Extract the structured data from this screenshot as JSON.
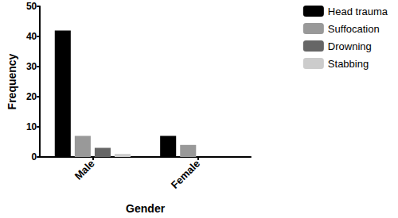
{
  "chart_data": {
    "type": "bar",
    "x_label": "Gender",
    "y_label": "Frequency",
    "categories": [
      "Male",
      "Female"
    ],
    "series": [
      {
        "name": "Head trauma",
        "color": "#000000",
        "values": [
          42,
          7
        ]
      },
      {
        "name": "Suffocation",
        "color": "#999999",
        "values": [
          7,
          4
        ]
      },
      {
        "name": "Drowning",
        "color": "#666666",
        "values": [
          3,
          0
        ]
      },
      {
        "name": "Stabbing",
        "color": "#cccccc",
        "values": [
          1,
          0
        ]
      }
    ],
    "ylim": [
      0,
      50
    ],
    "yticks": [
      0,
      10,
      20,
      30,
      40,
      50
    ],
    "grid": false,
    "legend": "right"
  }
}
